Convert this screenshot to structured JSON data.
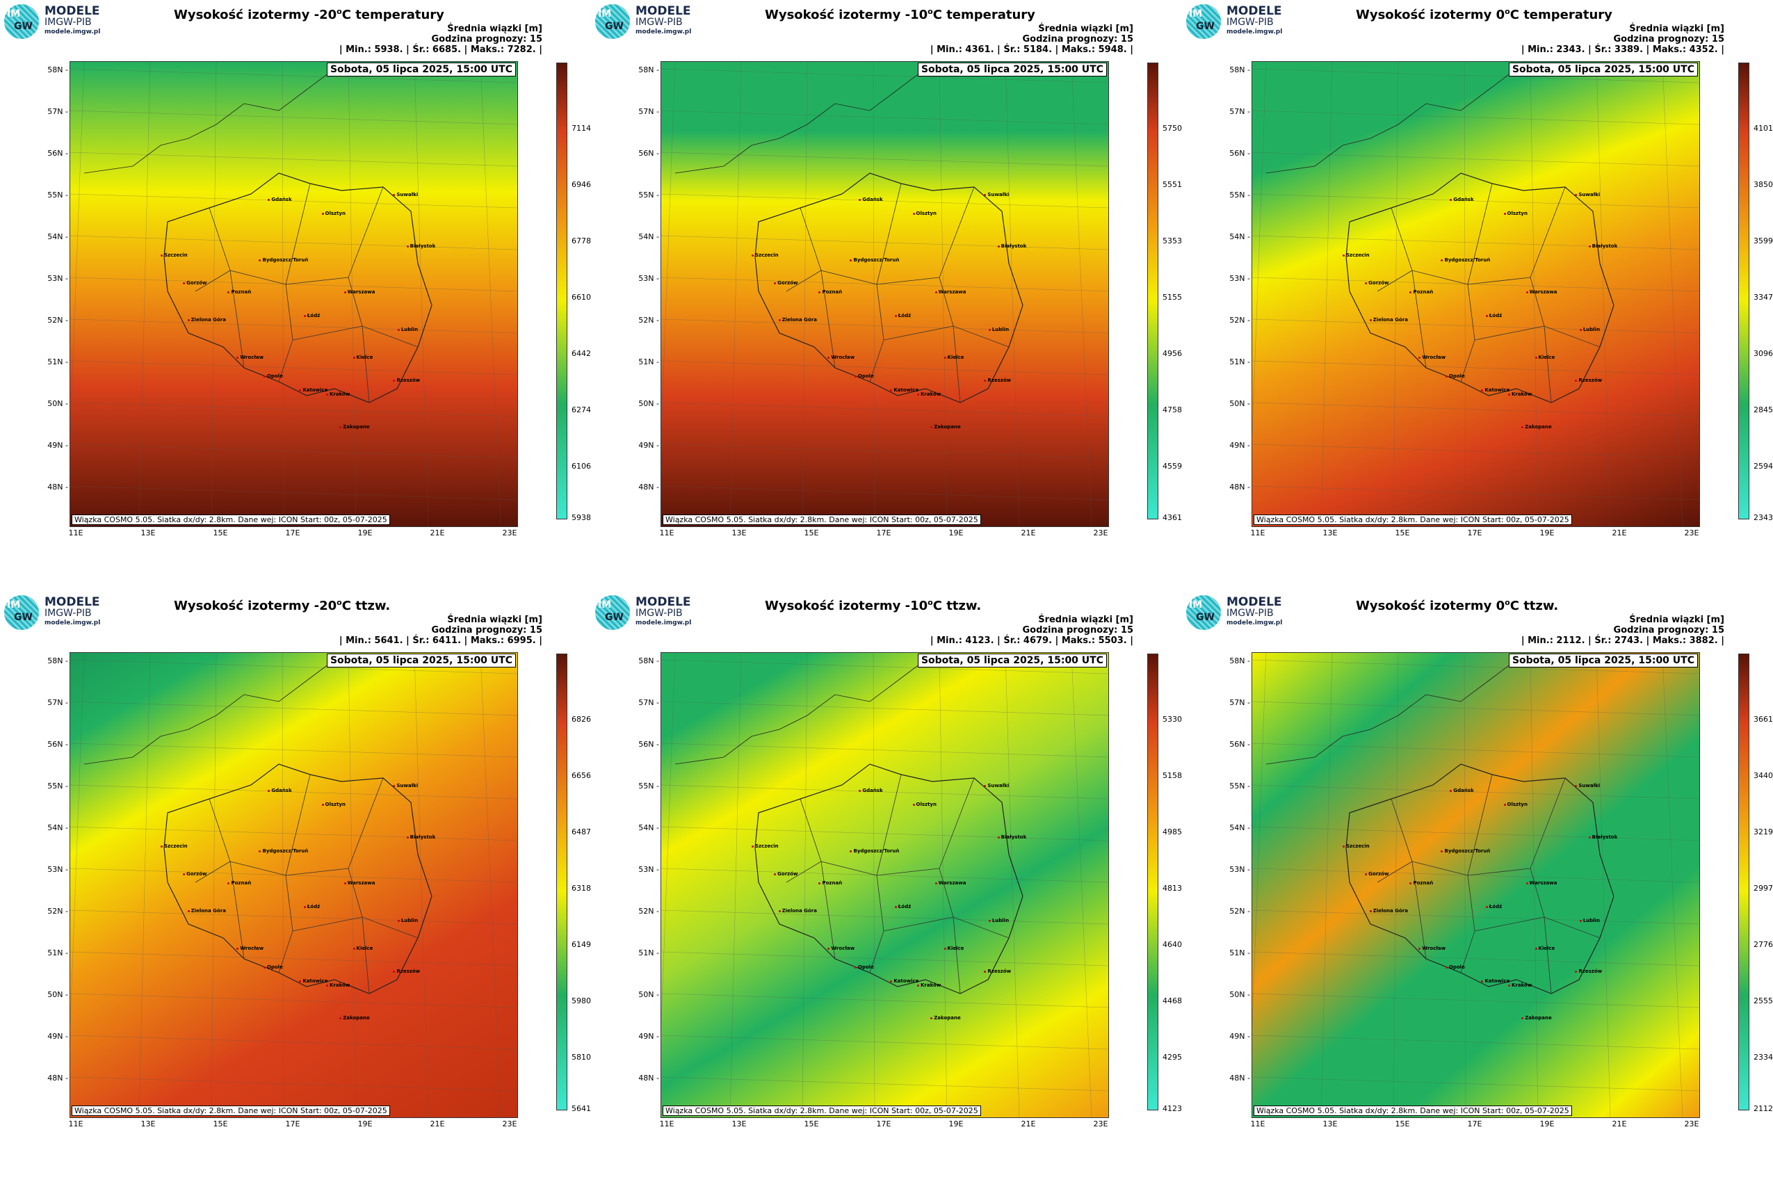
{
  "logo": {
    "title": "MODELE",
    "subtitle": "IMGW-PIB",
    "url": "modele.imgw.pl",
    "mark_top": "IM",
    "mark_bottom": "GW"
  },
  "stats_header_1": "Średnia wiązki [m]",
  "stats_header_2": "Godzina prognozy: 15",
  "date_label": "Sobota, 05 lipca 2025, 15:00 UTC",
  "footnote": "Wiązka COSMO 5.05. Siatka dx/dy: 2.8km. Dane wej: ICON Start: 00z, 05-07-2025",
  "lat_labels": [
    "58N",
    "57N",
    "56N",
    "55N",
    "54N",
    "53N",
    "52N",
    "51N",
    "50N",
    "49N",
    "48N"
  ],
  "lon_labels": [
    "11E",
    "13E",
    "15E",
    "17E",
    "19E",
    "21E",
    "23E"
  ],
  "cities": [
    "Gdańsk",
    "Olsztyn",
    "Suwałki",
    "Szczecin",
    "Białystok",
    "Bydgoszcz/Toruń",
    "Gorzów",
    "Poznań",
    "Warszawa",
    "Łódź",
    "Zielona Góra",
    "Lublin",
    "Wrocław",
    "Kielce",
    "Opole",
    "Rzeszów",
    "Katowice",
    "Kraków",
    "Zakopane"
  ],
  "colors": {
    "low": "#3de8d0",
    "green": "#22b060",
    "yellow": "#f4f000",
    "orange": "#f09a10",
    "red": "#d8401a",
    "dark": "#5a1408"
  },
  "panels": [
    {
      "title_pre": "Wysokość izotermy -20",
      "title_sup": "o",
      "title_post": "C temperatury",
      "min": "5938.",
      "avg": "6685.",
      "max": "7282.",
      "stats_line": "| Min.:   5938. | Śr.:   6685. | Maks.:   7282. |",
      "colorbar": [
        "7114",
        "6946",
        "6778",
        "6610",
        "6442",
        "6274",
        "6106",
        "5938"
      ]
    },
    {
      "title_pre": "Wysokość izotermy -10",
      "title_sup": "o",
      "title_post": "C temperatury",
      "min": "4361.",
      "avg": "5184.",
      "max": "5948.",
      "stats_line": "| Min.:   4361. | Śr.:   5184. | Maks.:   5948. |",
      "colorbar": [
        "5750",
        "5551",
        "5353",
        "5155",
        "4956",
        "4758",
        "4559",
        "4361"
      ]
    },
    {
      "title_pre": "Wysokość izotermy 0",
      "title_sup": "o",
      "title_post": "C temperatury",
      "min": "2343.",
      "avg": "3389.",
      "max": "4352.",
      "stats_line": "| Min.:   2343. | Śr.:   3389. | Maks.:   4352. |",
      "colorbar": [
        "4101",
        "3850",
        "3599",
        "3347",
        "3096",
        "2845",
        "2594",
        "2343"
      ]
    },
    {
      "title_pre": "Wysokość izotermy -20",
      "title_sup": "o",
      "title_post": "C ttzw.",
      "min": "5641.",
      "avg": "6411.",
      "max": "6995.",
      "stats_line": "| Min.:   5641. | Śr.:   6411. | Maks.:   6995. |",
      "colorbar": [
        "6826",
        "6656",
        "6487",
        "6318",
        "6149",
        "5980",
        "5810",
        "5641"
      ]
    },
    {
      "title_pre": "Wysokość izotermy -10",
      "title_sup": "o",
      "title_post": "C ttzw.",
      "min": "4123.",
      "avg": "4679.",
      "max": "5503.",
      "stats_line": "| Min.:   4123. | Śr.:   4679. | Maks.:   5503. |",
      "colorbar": [
        "5330",
        "5158",
        "4985",
        "4813",
        "4640",
        "4468",
        "4295",
        "4123"
      ]
    },
    {
      "title_pre": "Wysokość izotermy 0",
      "title_sup": "o",
      "title_post": "C ttzw.",
      "min": "2112.",
      "avg": "2743.",
      "max": "3882.",
      "stats_line": "| Min.:   2112. | Śr.:   2743. | Maks.:   3882. |",
      "colorbar": [
        "3661",
        "3440",
        "3219",
        "2997",
        "2776",
        "2555",
        "2334",
        "2112"
      ]
    }
  ]
}
